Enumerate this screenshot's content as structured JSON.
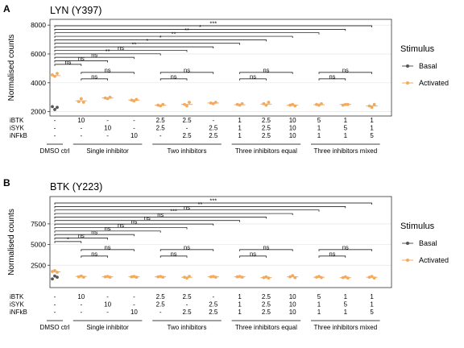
{
  "chart_data": [
    {
      "type": "scatter",
      "panel_letter": "A",
      "title": "LYN (Y397)",
      "xlabel": "",
      "ylabel": "Normalised counts",
      "ylim": [
        1700,
        8400
      ],
      "yticks": [
        2000,
        4000,
        6000,
        8000
      ],
      "yticklabels": [
        "2000",
        "4000",
        "6000",
        "8000"
      ],
      "medians": [
        4500,
        2750,
        2950,
        2800,
        2450,
        2500,
        2600,
        2480,
        2520,
        2450,
        2480,
        2500,
        2400
      ],
      "series": [
        {
          "name": "Basal",
          "points": [
            [
              1,
              2350
            ],
            [
              1,
              2150
            ],
            [
              1,
              2300
            ]
          ]
        },
        {
          "name": "Activated",
          "points": [
            [
              1,
              4550
            ],
            [
              1,
              4450
            ],
            [
              1,
              4650
            ],
            [
              2,
              2700
            ],
            [
              2,
              2900
            ],
            [
              2,
              2650
            ],
            [
              3,
              2950
            ],
            [
              3,
              2900
            ],
            [
              3,
              3000
            ],
            [
              4,
              2800
            ],
            [
              4,
              2750
            ],
            [
              4,
              2850
            ],
            [
              5,
              2450
            ],
            [
              5,
              2400
            ],
            [
              5,
              2500
            ],
            [
              6,
              2500
            ],
            [
              6,
              2400
            ],
            [
              6,
              2650
            ],
            [
              7,
              2600
            ],
            [
              7,
              2550
            ],
            [
              7,
              2650
            ],
            [
              8,
              2500
            ],
            [
              8,
              2450
            ],
            [
              8,
              2550
            ],
            [
              9,
              2550
            ],
            [
              9,
              2450
            ],
            [
              9,
              2650
            ],
            [
              10,
              2450
            ],
            [
              10,
              2500
            ],
            [
              10,
              2400
            ],
            [
              11,
              2500
            ],
            [
              11,
              2450
            ],
            [
              11,
              2550
            ],
            [
              12,
              2450
            ],
            [
              12,
              2500
            ],
            [
              12,
              2500
            ],
            [
              13,
              2400
            ],
            [
              13,
              2300
            ],
            [
              13,
              2500
            ]
          ]
        }
      ],
      "comparisons": [
        {
          "from": 1,
          "to": 13,
          "label": "***"
        },
        {
          "from": 1,
          "to": 12,
          "label": "*"
        },
        {
          "from": 1,
          "to": 11,
          "label": "**"
        },
        {
          "from": 1,
          "to": 10,
          "label": "**"
        },
        {
          "from": 1,
          "to": 9,
          "label": "*"
        },
        {
          "from": 1,
          "to": 8,
          "label": "*"
        },
        {
          "from": 1,
          "to": 7,
          "label": "**"
        },
        {
          "from": 1,
          "to": 6,
          "label": "ns"
        },
        {
          "from": 1,
          "to": 5,
          "label": "**"
        },
        {
          "from": 1,
          "to": 4,
          "label": "ns"
        },
        {
          "from": 1,
          "to": 3,
          "label": "ns"
        },
        {
          "from": 1,
          "to": 2,
          "label": "ns"
        },
        {
          "from": 2,
          "to": 4,
          "label": "ns"
        },
        {
          "from": 2,
          "to": 3,
          "label": "ns"
        },
        {
          "from": 5,
          "to": 7,
          "label": "ns"
        },
        {
          "from": 5,
          "to": 6,
          "label": "ns"
        },
        {
          "from": 8,
          "to": 10,
          "label": "ns"
        },
        {
          "from": 8,
          "to": 9,
          "label": "ns"
        },
        {
          "from": 11,
          "to": 13,
          "label": "ns"
        },
        {
          "from": 11,
          "to": 12,
          "label": "ns"
        }
      ]
    },
    {
      "type": "scatter",
      "panel_letter": "B",
      "title": "BTK (Y223)",
      "xlabel": "",
      "ylabel": "Normalised counts",
      "ylim": [
        -200,
        10800
      ],
      "yticks": [
        2500,
        5000,
        7500
      ],
      "yticklabels": [
        "2500",
        "5000",
        "7500"
      ],
      "medians": [
        1700,
        1150,
        1100,
        1100,
        1100,
        1050,
        1100,
        1100,
        1000,
        1100,
        1050,
        1000,
        1050
      ],
      "series": [
        {
          "name": "Basal",
          "points": [
            [
              1,
              850
            ],
            [
              1,
              1200
            ],
            [
              1,
              1050
            ]
          ]
        },
        {
          "name": "Activated",
          "points": [
            [
              1,
              1750
            ],
            [
              1,
              1850
            ],
            [
              1,
              1650
            ],
            [
              2,
              1100
            ],
            [
              2,
              1200
            ],
            [
              2,
              1050
            ],
            [
              3,
              1100
            ],
            [
              3,
              1150
            ],
            [
              3,
              1050
            ],
            [
              4,
              1100
            ],
            [
              4,
              1150
            ],
            [
              4,
              1050
            ],
            [
              5,
              1100
            ],
            [
              5,
              1150
            ],
            [
              5,
              1050
            ],
            [
              6,
              1050
            ],
            [
              6,
              950
            ],
            [
              6,
              1150
            ],
            [
              7,
              1100
            ],
            [
              7,
              1150
            ],
            [
              7,
              1050
            ],
            [
              8,
              1100
            ],
            [
              8,
              1150
            ],
            [
              8,
              1050
            ],
            [
              9,
              1000
            ],
            [
              9,
              1100
            ],
            [
              9,
              950
            ],
            [
              10,
              1100
            ],
            [
              10,
              1250
            ],
            [
              10,
              1000
            ],
            [
              11,
              1050
            ],
            [
              11,
              1150
            ],
            [
              11,
              1000
            ],
            [
              12,
              1000
            ],
            [
              12,
              1100
            ],
            [
              12,
              950
            ],
            [
              13,
              1050
            ],
            [
              13,
              1150
            ],
            [
              13,
              950
            ]
          ]
        }
      ],
      "comparisons": [
        {
          "from": 1,
          "to": 13,
          "label": "***"
        },
        {
          "from": 1,
          "to": 12,
          "label": "**"
        },
        {
          "from": 1,
          "to": 11,
          "label": "ns"
        },
        {
          "from": 1,
          "to": 10,
          "label": "***"
        },
        {
          "from": 1,
          "to": 9,
          "label": "ns"
        },
        {
          "from": 1,
          "to": 8,
          "label": "ns"
        },
        {
          "from": 1,
          "to": 7,
          "label": "ns"
        },
        {
          "from": 1,
          "to": 6,
          "label": "ns"
        },
        {
          "from": 1,
          "to": 5,
          "label": "ns"
        },
        {
          "from": 1,
          "to": 4,
          "label": "ns"
        },
        {
          "from": 1,
          "to": 3,
          "label": "ns"
        },
        {
          "from": 1,
          "to": 2,
          "label": "*"
        },
        {
          "from": 2,
          "to": 4,
          "label": "ns"
        },
        {
          "from": 2,
          "to": 3,
          "label": "ns"
        },
        {
          "from": 5,
          "to": 7,
          "label": "ns"
        },
        {
          "from": 5,
          "to": 6,
          "label": "ns"
        },
        {
          "from": 8,
          "to": 10,
          "label": "ns"
        },
        {
          "from": 8,
          "to": 9,
          "label": "ns"
        },
        {
          "from": 11,
          "to": 13,
          "label": "ns"
        },
        {
          "from": 11,
          "to": 12,
          "label": "ns"
        }
      ]
    }
  ],
  "conditions": {
    "row_labels": [
      "iBTK",
      "iSYK",
      "iNFkB"
    ],
    "rows": [
      [
        "-",
        "10",
        "-",
        "-",
        "2.5",
        "2.5",
        "-",
        "1",
        "2.5",
        "10",
        "5",
        "1",
        "1"
      ],
      [
        "-",
        "-",
        "10",
        "-",
        "2.5",
        "-",
        "2.5",
        "1",
        "2.5",
        "10",
        "1",
        "5",
        "1"
      ],
      [
        "-",
        "-",
        "-",
        "10",
        "-",
        "2.5",
        "2.5",
        "1",
        "2.5",
        "10",
        "1",
        "1",
        "5"
      ]
    ],
    "groups": [
      {
        "label": "DMSO ctrl",
        "from": 1,
        "to": 1
      },
      {
        "label": "Single inhibitor",
        "from": 2,
        "to": 4
      },
      {
        "label": "Two inhibitors",
        "from": 5,
        "to": 7
      },
      {
        "label": "Three inhibitors equal",
        "from": 8,
        "to": 10
      },
      {
        "label": "Three inhibitors mixed",
        "from": 11,
        "to": 13
      }
    ]
  },
  "legend": {
    "title": "Stimulus",
    "items": [
      {
        "label": "Basal",
        "color": "#555555"
      },
      {
        "label": "Activated",
        "color": "#F5A95A"
      }
    ]
  },
  "colors": {
    "basal": "#555555",
    "activated": "#F5A95A",
    "grid": "#E5E5E5"
  }
}
